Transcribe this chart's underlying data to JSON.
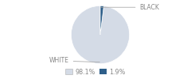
{
  "slices": [
    98.1,
    1.9
  ],
  "labels": [
    "WHITE",
    "BLACK"
  ],
  "colors": [
    "#d4dbe6",
    "#2e5f8a"
  ],
  "legend_labels": [
    "98.1%",
    "1.9%"
  ],
  "legend_colors": [
    "#d4dbe6",
    "#2e5f8a"
  ],
  "startangle": 90,
  "white_pct": 98.1,
  "black_pct": 1.9
}
